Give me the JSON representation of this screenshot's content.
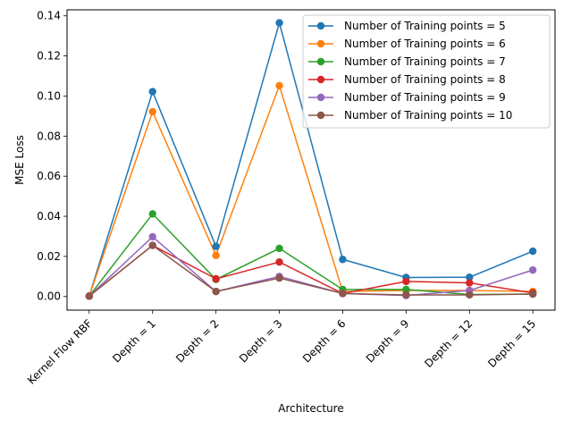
{
  "chart_data": {
    "type": "line",
    "xlabel": "Architecture",
    "ylabel": "MSE Loss",
    "categories": [
      "Kernel Flow RBF",
      "Depth = 1",
      "Depth = 2",
      "Depth = 3",
      "Depth = 6",
      "Depth = 9",
      "Depth = 12",
      "Depth = 15"
    ],
    "y_ticks": [
      "0.00",
      "0.02",
      "0.04",
      "0.06",
      "0.08",
      "0.10",
      "0.12",
      "0.14"
    ],
    "ylim": [
      -0.0068,
      0.143
    ],
    "grid": false,
    "legend_position": "top-right",
    "series": [
      {
        "name": "Number of Training points = 5",
        "color": "#1f77b4",
        "values": [
          0.0002,
          0.1022,
          0.025,
          0.1365,
          0.0185,
          0.0095,
          0.0096,
          0.0226
        ]
      },
      {
        "name": "Number of Training points = 6",
        "color": "#ff7f0e",
        "values": [
          0.0002,
          0.0922,
          0.0205,
          0.1052,
          0.0025,
          0.003,
          0.003,
          0.0025
        ]
      },
      {
        "name": "Number of Training points = 7",
        "color": "#2ca02c",
        "values": [
          0.0002,
          0.0412,
          0.0085,
          0.024,
          0.0035,
          0.0035,
          0.001,
          0.0012
        ]
      },
      {
        "name": "Number of Training points = 8",
        "color": "#d62728",
        "values": [
          0.0002,
          0.0255,
          0.0088,
          0.0172,
          0.0015,
          0.0075,
          0.0068,
          0.0018
        ]
      },
      {
        "name": "Number of Training points = 9",
        "color": "#9467bd",
        "values": [
          0.0002,
          0.0298,
          0.0025,
          0.01,
          0.0015,
          0.0005,
          0.003,
          0.0132
        ]
      },
      {
        "name": "Number of Training points = 10",
        "color": "#8c564b",
        "values": [
          0.0002,
          0.0255,
          0.0025,
          0.0092,
          0.0015,
          0.0008,
          0.0008,
          0.0012
        ]
      }
    ]
  }
}
